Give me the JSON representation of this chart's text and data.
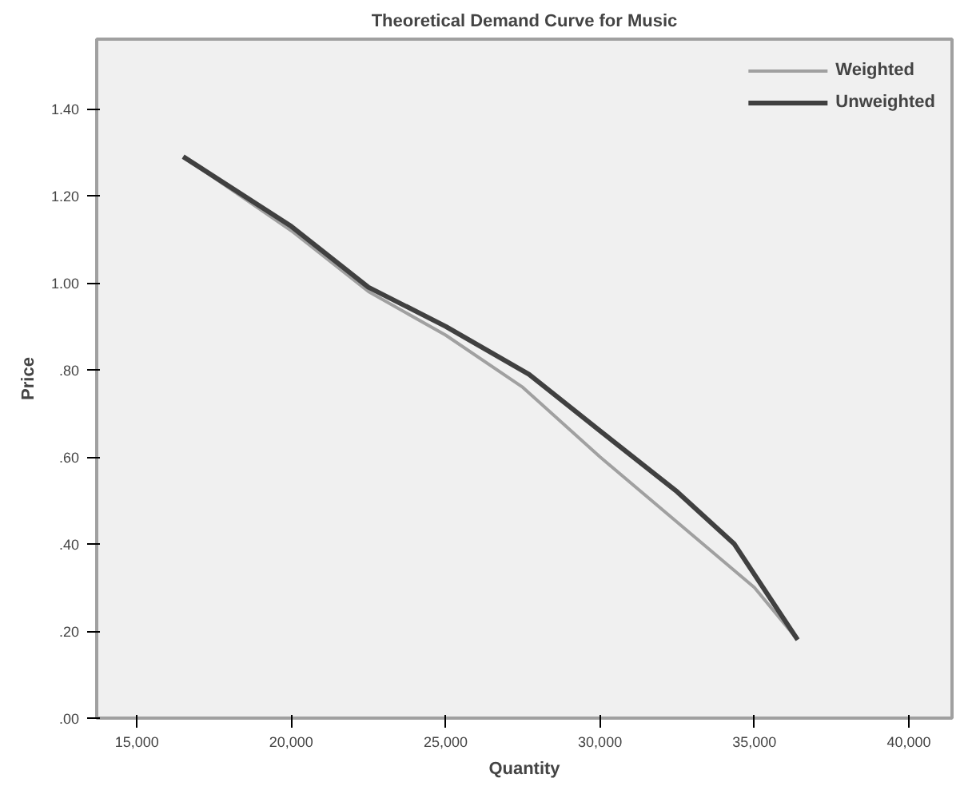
{
  "chart_data": {
    "type": "line",
    "title": "Theoretical Demand Curve for Music",
    "xlabel": "Quantity",
    "ylabel": "Price",
    "xlim": [
      13700,
      41400
    ],
    "ylim": [
      0,
      1.56
    ],
    "xticks": [
      {
        "value": 15000,
        "label": "15,000"
      },
      {
        "value": 20000,
        "label": "20,000"
      },
      {
        "value": 25000,
        "label": "25,000"
      },
      {
        "value": 30000,
        "label": "30,000"
      },
      {
        "value": 35000,
        "label": "35,000"
      },
      {
        "value": 40000,
        "label": "40,000"
      }
    ],
    "yticks": [
      {
        "value": 0,
        "label": ".00"
      },
      {
        "value": 0.2,
        "label": ".20"
      },
      {
        "value": 0.4,
        "label": ".40"
      },
      {
        "value": 0.6,
        "label": ".60"
      },
      {
        "value": 0.8,
        "label": ".80"
      },
      {
        "value": 1.0,
        "label": "1.00"
      },
      {
        "value": 1.2,
        "label": "1.20"
      },
      {
        "value": 1.4,
        "label": "1.40"
      }
    ],
    "grid": false,
    "legend": "top right",
    "marker": "none",
    "line_style": "solid",
    "series": [
      {
        "name": "Weighted",
        "color": "#a0a0a0",
        "x": [
          16500,
          20000,
          22500,
          25000,
          27500,
          30000,
          32500,
          35000,
          36400
        ],
        "values": [
          1.29,
          1.12,
          0.98,
          0.88,
          0.76,
          0.6,
          0.45,
          0.3,
          0.18
        ]
      },
      {
        "name": "Unweighted",
        "color": "#404040",
        "x": [
          16500,
          20000,
          22500,
          25000,
          27700,
          30000,
          32500,
          34350,
          35000,
          36400
        ],
        "values": [
          1.29,
          1.13,
          0.99,
          0.9,
          0.79,
          0.66,
          0.52,
          0.4,
          0.33,
          0.18
        ]
      }
    ]
  }
}
